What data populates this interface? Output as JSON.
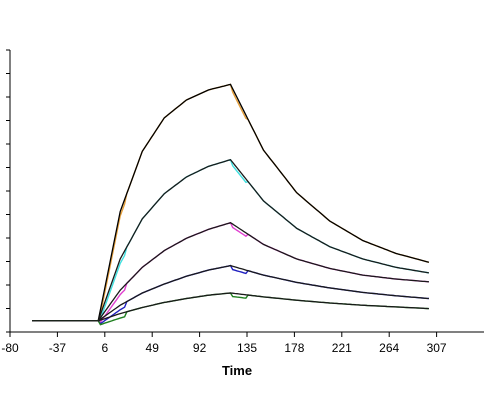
{
  "chart_data": {
    "type": "line",
    "title": "",
    "xlabel": "Time",
    "ylabel": "",
    "xlim": [
      -80,
      350
    ],
    "ylim": [
      -2,
      50
    ],
    "x_ticks": [
      -80,
      -37,
      6,
      49,
      92,
      135,
      178,
      221,
      264,
      307
    ],
    "x_tick_labels": [
      "-80",
      "-37",
      "6",
      "49",
      "92",
      "135",
      "178",
      "221",
      "264",
      "307"
    ],
    "y_ticks_count": 13,
    "y_tick_labels_visible": false,
    "grid": false,
    "legend": "none",
    "phases": {
      "baseline_start": -60,
      "association_start": 0,
      "dissociation_start": 120,
      "end": 300
    },
    "series": [
      {
        "color": "#000000",
        "fit_color": "#e6a03c",
        "baseline": 0,
        "values": [
          [
            0,
            0
          ],
          [
            20,
            19.6
          ],
          [
            40,
            30.4
          ],
          [
            60,
            36.4
          ],
          [
            80,
            39.6
          ],
          [
            100,
            41.4
          ],
          [
            120,
            42.4
          ],
          [
            150,
            30.6
          ],
          [
            180,
            23.0
          ],
          [
            210,
            17.9
          ],
          [
            240,
            14.4
          ],
          [
            270,
            12.1
          ],
          [
            300,
            10.5
          ]
        ]
      },
      {
        "color": "#1a1a1a",
        "fit_color": "#40e0e0",
        "baseline": 0,
        "values": [
          [
            0,
            0
          ],
          [
            20,
            11.1
          ],
          [
            40,
            18.3
          ],
          [
            60,
            22.8
          ],
          [
            80,
            25.8
          ],
          [
            100,
            27.7
          ],
          [
            120,
            28.9
          ],
          [
            150,
            21.5
          ],
          [
            180,
            16.6
          ],
          [
            210,
            13.3
          ],
          [
            240,
            11.1
          ],
          [
            270,
            9.6
          ],
          [
            300,
            8.6
          ]
        ]
      },
      {
        "color": "#1a1a1a",
        "fit_color": "#e040d0",
        "baseline": 0,
        "values": [
          [
            0,
            0
          ],
          [
            20,
            5.5
          ],
          [
            40,
            9.6
          ],
          [
            60,
            12.6
          ],
          [
            80,
            14.8
          ],
          [
            100,
            16.4
          ],
          [
            120,
            17.6
          ],
          [
            150,
            13.7
          ],
          [
            180,
            11.1
          ],
          [
            210,
            9.4
          ],
          [
            240,
            8.2
          ],
          [
            270,
            7.5
          ],
          [
            300,
            7.0
          ]
        ]
      },
      {
        "color": "#1a1a1a",
        "fit_color": "#2020c0",
        "baseline": 0,
        "values": [
          [
            0,
            0
          ],
          [
            20,
            2.8
          ],
          [
            40,
            5.0
          ],
          [
            60,
            6.6
          ],
          [
            80,
            8.0
          ],
          [
            100,
            9.1
          ],
          [
            120,
            9.9
          ],
          [
            150,
            8.2
          ],
          [
            180,
            6.9
          ],
          [
            210,
            5.9
          ],
          [
            240,
            5.1
          ],
          [
            270,
            4.5
          ],
          [
            300,
            4.0
          ]
        ]
      },
      {
        "color": "#1a1a1a",
        "fit_color": "#208020",
        "baseline": 0,
        "values": [
          [
            0,
            0
          ],
          [
            20,
            1.3
          ],
          [
            40,
            2.4
          ],
          [
            60,
            3.3
          ],
          [
            80,
            4.0
          ],
          [
            100,
            4.6
          ],
          [
            120,
            5.0
          ],
          [
            150,
            4.3
          ],
          [
            180,
            3.7
          ],
          [
            210,
            3.2
          ],
          [
            240,
            2.8
          ],
          [
            270,
            2.5
          ],
          [
            300,
            2.2
          ]
        ]
      }
    ]
  }
}
